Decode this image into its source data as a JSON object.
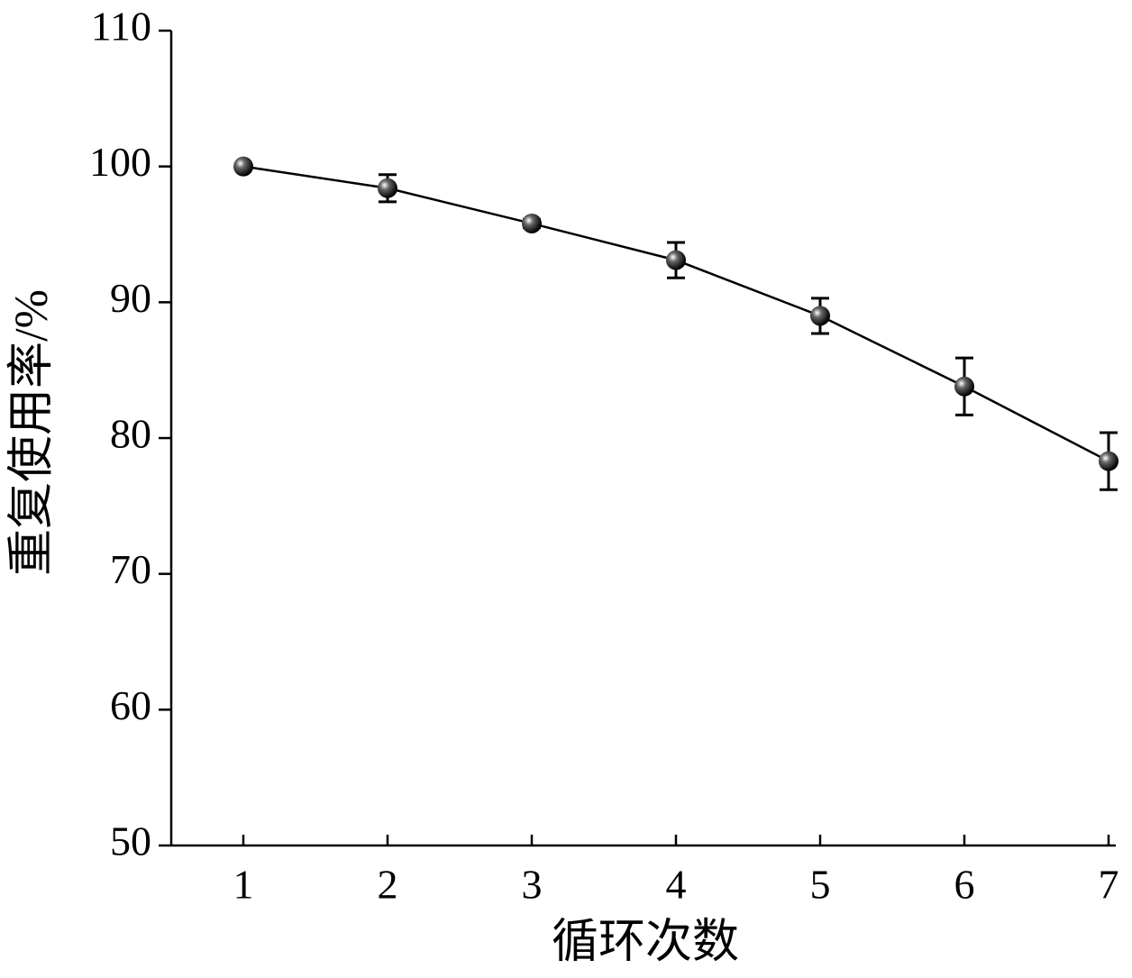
{
  "chart_data": {
    "type": "line",
    "xlabel": "循环次数",
    "ylabel": "重复使用率/%",
    "x": [
      1,
      2,
      3,
      4,
      5,
      6,
      7
    ],
    "series": [
      {
        "name": "重复使用率",
        "color": "#000000",
        "values": [
          100,
          98.4,
          95.8,
          93.1,
          89.0,
          83.8,
          78.3
        ],
        "errors": [
          0,
          1.0,
          0.3,
          1.3,
          1.3,
          2.1,
          2.1
        ]
      }
    ],
    "xlim": [
      0.5,
      7.05
    ],
    "xticks": [
      1,
      2,
      3,
      4,
      5,
      6,
      7
    ],
    "ylim": [
      50,
      110
    ],
    "yticks": [
      50,
      60,
      70,
      80,
      90,
      100,
      110
    ],
    "grid": false,
    "legend": false
  }
}
